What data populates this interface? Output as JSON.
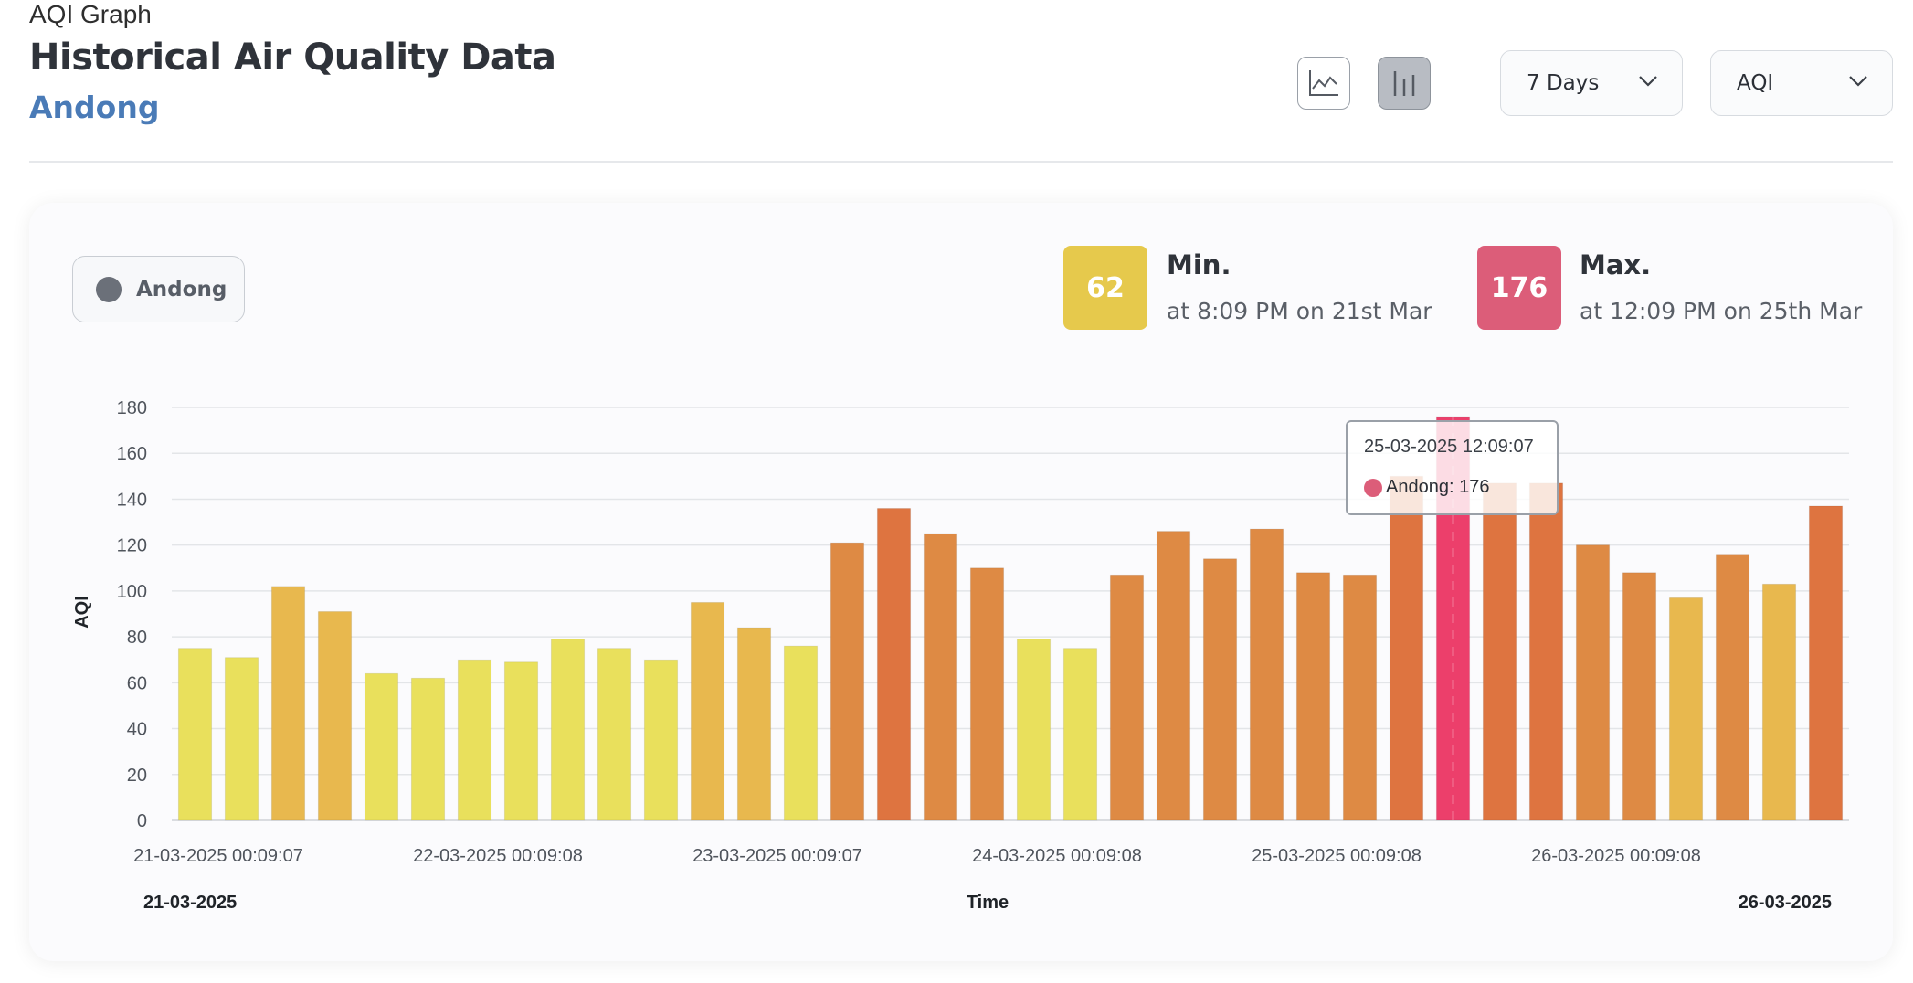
{
  "header": {
    "eyebrow": "AQI Graph",
    "title": "Historical Air Quality Data",
    "location": "Andong"
  },
  "toolbar": {
    "line_chart_icon": "line-chart-icon",
    "bar_chart_icon": "bar-chart-icon",
    "active_view": "bar",
    "range_value": "7 Days",
    "metric_value": "AQI"
  },
  "legend": {
    "label": "Andong",
    "color": "#6b7079"
  },
  "stats": {
    "min": {
      "value": "62",
      "label": "Min.",
      "sub": "at 8:09 PM on 21st Mar",
      "color": "#e6c94c"
    },
    "max": {
      "value": "176",
      "label": "Max.",
      "sub": "at 12:09 PM on 25th Mar",
      "color": "#dc5d79"
    }
  },
  "tooltip": {
    "time": "25-03-2025 12:09:07",
    "series": "Andong",
    "value": "176",
    "text": "Andong: 176"
  },
  "chart_data": {
    "type": "bar",
    "series": [
      {
        "name": "Andong",
        "values": [
          75,
          71,
          102,
          91,
          64,
          62,
          70,
          69,
          79,
          75,
          70,
          95,
          84,
          76,
          121,
          136,
          125,
          110,
          79,
          75,
          107,
          126,
          114,
          127,
          108,
          107,
          150,
          176,
          147,
          147,
          120,
          108,
          97,
          116,
          103,
          137
        ]
      }
    ],
    "highlight_index": 27,
    "ylabel": "AQI",
    "xlabel": "Time",
    "ylim": [
      0,
      180
    ],
    "yticks": [
      0,
      20,
      40,
      60,
      80,
      100,
      120,
      140,
      160,
      180
    ],
    "xtick_labels": [
      "21-03-2025 00:09:07",
      "22-03-2025 00:09:08",
      "23-03-2025 00:09:07",
      "24-03-2025 00:09:08",
      "25-03-2025 00:09:08",
      "26-03-2025 00:09:08"
    ],
    "xtick_positions": [
      0.5,
      6.5,
      12.5,
      18.5,
      24.5,
      30.5
    ],
    "range_start_label": "21-03-2025",
    "range_end_label": "26-03-2025",
    "grid": true,
    "legend_position": "top-left",
    "colors": {
      "good": "#e9e05c",
      "moderate": "#e8b84e",
      "unhealthy_sensitive": "#de8a44",
      "unhealthy": "#de7440",
      "highlight": "#ec3f6b"
    }
  }
}
